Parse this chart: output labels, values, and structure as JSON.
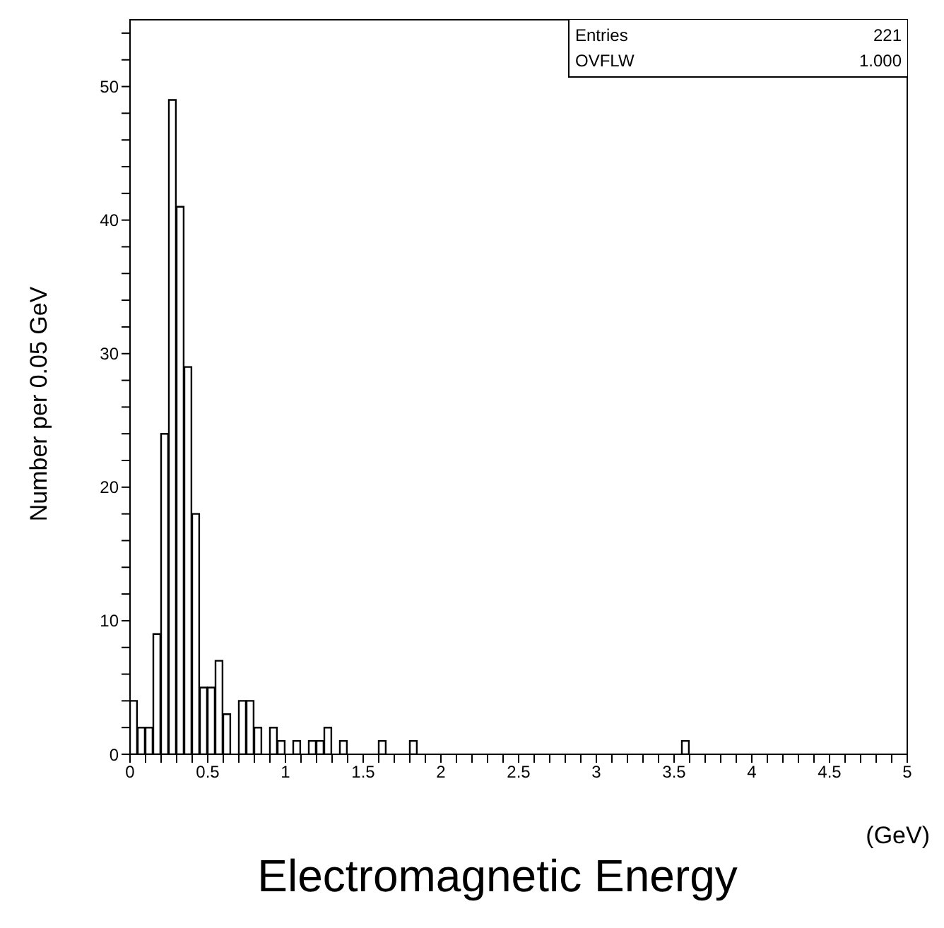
{
  "chart_data": {
    "type": "histogram",
    "xlabel": "Electromagnetic Energy",
    "ylabel": "Number per 0.05 GeV",
    "annotations": [
      "(GeV)",
      "Entries",
      "221",
      "OVFLW",
      "1.000"
    ],
    "bins": [
      0,
      0.05,
      0.1,
      0.15,
      0.2,
      0.25,
      0.3,
      0.35,
      0.4,
      0.45,
      0.5,
      0.55,
      0.6,
      0.65,
      0.7,
      0.75,
      0.8,
      0.85,
      0.9,
      0.95,
      1,
      1.05,
      1.1,
      1.15,
      1.2,
      1.25,
      1.3,
      1.35,
      1.4,
      1.45,
      1.5,
      1.55,
      1.6,
      1.65,
      1.7,
      1.75,
      1.8,
      1.85,
      1.9,
      1.95,
      2,
      2.05,
      2.1,
      2.15,
      2.2,
      2.25,
      2.3,
      2.35,
      2.4,
      2.45,
      2.5,
      2.55,
      2.6,
      2.65,
      2.7,
      2.75,
      2.8,
      2.85,
      2.9,
      2.95,
      3,
      3.05,
      3.1,
      3.15,
      3.2,
      3.25,
      3.3,
      3.35,
      3.4,
      3.45,
      3.5,
      3.55,
      3.6,
      3.65,
      3.7,
      3.75,
      3.8,
      3.85,
      3.9,
      3.95,
      4,
      4.05,
      4.1,
      4.15,
      4.2,
      4.25,
      4.3,
      4.35,
      4.4,
      4.45,
      4.5,
      4.55,
      4.6,
      4.65,
      4.7,
      4.75,
      4.8,
      4.85,
      4.9,
      4.95,
      5
    ],
    "values": [
      4,
      2,
      2,
      9,
      24,
      49,
      41,
      29,
      18,
      5,
      5,
      7,
      3,
      0,
      4,
      4,
      2,
      0,
      2,
      1,
      0,
      1,
      0,
      1,
      1,
      2,
      0,
      1,
      0,
      0,
      0,
      0,
      1,
      0,
      0,
      0,
      1,
      0,
      0,
      0,
      0,
      0,
      0,
      0,
      0,
      0,
      0,
      0,
      0,
      0,
      0,
      0,
      0,
      0,
      0,
      0,
      0,
      0,
      0,
      0,
      0,
      0,
      0,
      0,
      0,
      0,
      0,
      0,
      0,
      0,
      0,
      1,
      0,
      0,
      0,
      0,
      0,
      0,
      0,
      0,
      0,
      0,
      0,
      0,
      0,
      0,
      0,
      0,
      0,
      0,
      0,
      0,
      0,
      0,
      0,
      0,
      0,
      0,
      0,
      0
    ],
    "color": "#000000",
    "xlim": [
      0,
      5
    ],
    "xticks": [
      0,
      {
        "value": 0.1,
        "label": null
      },
      {
        "value": 0.2,
        "label": null
      },
      {
        "value": 0.3,
        "label": null
      },
      {
        "value": 0.4,
        "label": null
      },
      0.5,
      {
        "value": 0.6,
        "label": null
      },
      {
        "value": 0.7,
        "label": null
      },
      {
        "value": 0.8,
        "label": null
      },
      {
        "value": 0.9,
        "label": null
      },
      1,
      {
        "value": 1.1,
        "label": null
      },
      {
        "value": 1.2,
        "label": null
      },
      {
        "value": 1.3,
        "label": null
      },
      {
        "value": 1.4,
        "label": null
      },
      1.5,
      {
        "value": 1.6,
        "label": null
      },
      {
        "value": 1.7,
        "label": null
      },
      {
        "value": 1.8,
        "label": null
      },
      {
        "value": 1.9,
        "label": null
      },
      2,
      {
        "value": 2.1,
        "label": null
      },
      {
        "value": 2.2,
        "label": null
      },
      {
        "value": 2.3,
        "label": null
      },
      {
        "value": 2.4,
        "label": null
      },
      2.5,
      {
        "value": 2.6,
        "label": null
      },
      {
        "value": 2.7,
        "label": null
      },
      {
        "value": 2.8,
        "label": null
      },
      {
        "value": 2.9,
        "label": null
      },
      3,
      {
        "value": 3.1,
        "label": null
      },
      {
        "value": 3.2,
        "label": null
      },
      {
        "value": 3.3,
        "label": null
      },
      {
        "value": 3.4,
        "label": null
      },
      3.5,
      {
        "value": 3.6,
        "label": null
      },
      {
        "value": 3.7,
        "label": null
      },
      {
        "value": 3.8,
        "label": null
      },
      {
        "value": 3.9,
        "label": null
      },
      4,
      {
        "value": 4.1,
        "label": null
      },
      {
        "value": 4.2,
        "label": null
      },
      {
        "value": 4.3,
        "label": null
      },
      {
        "value": 4.4,
        "label": null
      },
      4.5,
      {
        "value": 4.6,
        "label": null
      },
      {
        "value": 4.7,
        "label": null
      },
      {
        "value": 4.8,
        "label": null
      },
      {
        "value": 4.9,
        "label": null
      },
      5
    ],
    "ylim": [
      0,
      55
    ],
    "yticks": [
      0,
      {
        "value": 2,
        "label": null
      },
      {
        "value": 4,
        "label": null
      },
      {
        "value": 6,
        "label": null
      },
      {
        "value": 8,
        "label": null
      },
      10,
      {
        "value": 12,
        "label": null
      },
      {
        "value": 14,
        "label": null
      },
      {
        "value": 16,
        "label": null
      },
      {
        "value": 18,
        "label": null
      },
      20,
      {
        "value": 22,
        "label": null
      },
      {
        "value": 24,
        "label": null
      },
      {
        "value": 26,
        "label": null
      },
      {
        "value": 28,
        "label": null
      },
      30,
      {
        "value": 32,
        "label": null
      },
      {
        "value": 34,
        "label": null
      },
      {
        "value": 36,
        "label": null
      },
      {
        "value": 38,
        "label": null
      },
      40,
      {
        "value": 42,
        "label": null
      },
      {
        "value": 44,
        "label": null
      },
      {
        "value": 46,
        "label": null
      },
      {
        "value": 48,
        "label": null
      },
      50,
      {
        "value": 52,
        "label": null
      },
      {
        "value": 54,
        "label": null
      }
    ],
    "grid": false,
    "legend": false
  }
}
